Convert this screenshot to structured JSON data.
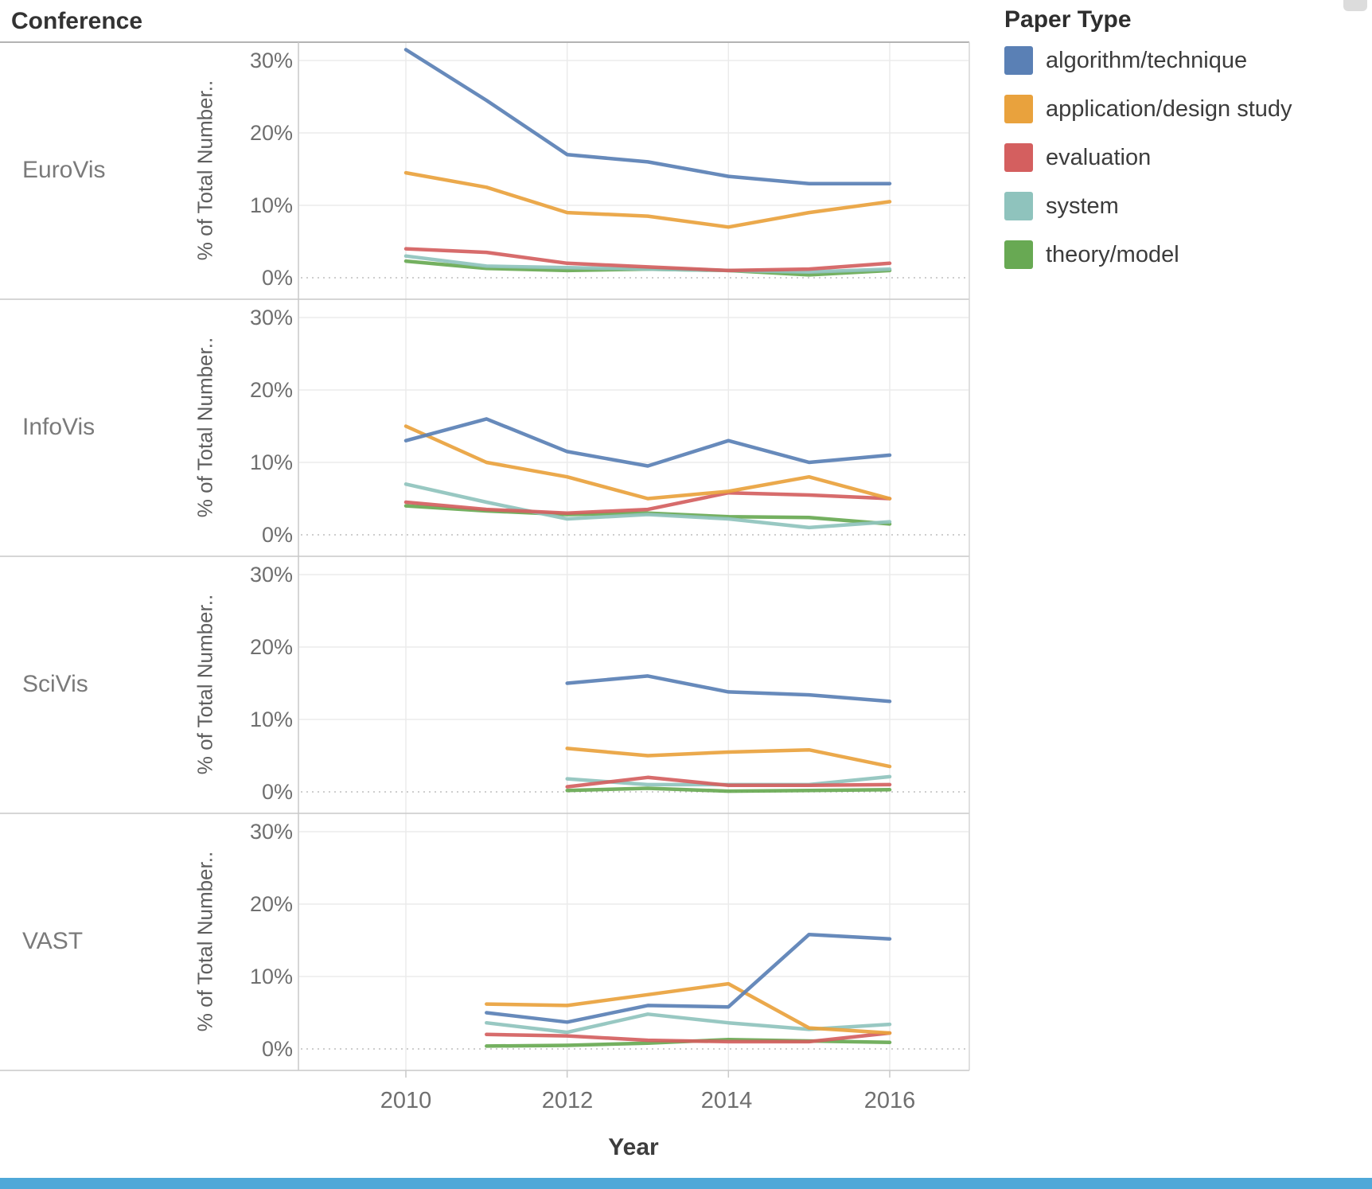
{
  "header": {
    "title": "Conference"
  },
  "x_axis": {
    "title": "Year",
    "ticks": [
      "2010",
      "2012",
      "2014",
      "2016"
    ],
    "tick_years": [
      2010,
      2012,
      2014,
      2016
    ]
  },
  "y_axis": {
    "title": "% of Total Number..",
    "ticks": [
      "30%",
      "20%",
      "10%",
      "0%"
    ],
    "tick_values": [
      30,
      20,
      10,
      0
    ]
  },
  "legend": {
    "title": "Paper Type",
    "items": [
      {
        "label": "algorithm/technique",
        "color": "#5a80b5"
      },
      {
        "label": "application/design study",
        "color": "#e9a23d"
      },
      {
        "label": "evaluation",
        "color": "#d45f5f"
      },
      {
        "label": "system",
        "color": "#8fc3bd"
      },
      {
        "label": "theory/model",
        "color": "#68a953"
      }
    ]
  },
  "chart_data": {
    "type": "line",
    "facet_field": "Conference",
    "x": [
      2010,
      2011,
      2012,
      2013,
      2014,
      2015,
      2016
    ],
    "xlabel": "Year",
    "ylabel": "% of Total Number..",
    "ylim": [
      0,
      33
    ],
    "grid": true,
    "legend_position": "top-right",
    "panels": [
      {
        "conference": "EuroVis",
        "series": [
          {
            "name": "algorithm/technique",
            "color": "#5a80b5",
            "values": [
              31.5,
              24.5,
              17,
              16,
              14,
              13,
              13
            ]
          },
          {
            "name": "application/design study",
            "color": "#e9a23d",
            "values": [
              14.5,
              12.5,
              9,
              8.5,
              7,
              9,
              10.5
            ]
          },
          {
            "name": "evaluation",
            "color": "#d45f5f",
            "values": [
              4,
              3.5,
              2,
              1.5,
              1,
              1.2,
              2
            ]
          },
          {
            "name": "system",
            "color": "#8fc3bd",
            "values": [
              3,
              1.6,
              1.4,
              1.2,
              1,
              0.8,
              1.2
            ]
          },
          {
            "name": "theory/model",
            "color": "#68a953",
            "values": [
              2.3,
              1.3,
              1,
              1.2,
              1,
              0.4,
              1
            ]
          }
        ]
      },
      {
        "conference": "InfoVis",
        "series": [
          {
            "name": "algorithm/technique",
            "color": "#5a80b5",
            "values": [
              13,
              16,
              11.5,
              9.5,
              13,
              10,
              11
            ]
          },
          {
            "name": "application/design study",
            "color": "#e9a23d",
            "values": [
              15,
              10,
              8,
              5,
              6,
              8,
              5
            ]
          },
          {
            "name": "evaluation",
            "color": "#d45f5f",
            "values": [
              4.5,
              3.5,
              3,
              3.5,
              5.8,
              5.5,
              5
            ]
          },
          {
            "name": "system",
            "color": "#8fc3bd",
            "values": [
              7,
              4.5,
              2.2,
              2.8,
              2.2,
              1,
              1.8
            ]
          },
          {
            "name": "theory/model",
            "color": "#68a953",
            "values": [
              4,
              3.3,
              2.8,
              3,
              2.5,
              2.4,
              1.5
            ]
          }
        ]
      },
      {
        "conference": "SciVis",
        "series": [
          {
            "name": "algorithm/technique",
            "color": "#5a80b5",
            "values": [
              null,
              null,
              15,
              16,
              13.8,
              13.4,
              12.5
            ]
          },
          {
            "name": "application/design study",
            "color": "#e9a23d",
            "values": [
              null,
              null,
              6,
              5,
              5.5,
              5.8,
              3.5
            ]
          },
          {
            "name": "evaluation",
            "color": "#d45f5f",
            "values": [
              null,
              null,
              0.7,
              2,
              0.9,
              0.9,
              1
            ]
          },
          {
            "name": "system",
            "color": "#8fc3bd",
            "values": [
              null,
              null,
              1.8,
              1,
              1,
              1,
              2.1
            ]
          },
          {
            "name": "theory/model",
            "color": "#68a953",
            "values": [
              null,
              null,
              0.2,
              0.5,
              0.1,
              0.2,
              0.3
            ]
          }
        ]
      },
      {
        "conference": "VAST",
        "series": [
          {
            "name": "algorithm/technique",
            "color": "#5a80b5",
            "values": [
              null,
              5,
              3.7,
              6,
              5.8,
              15.8,
              15.2
            ]
          },
          {
            "name": "application/design study",
            "color": "#e9a23d",
            "values": [
              null,
              6.2,
              6,
              7.5,
              9,
              2.9,
              2.2
            ]
          },
          {
            "name": "evaluation",
            "color": "#d45f5f",
            "values": [
              null,
              2,
              1.8,
              1.2,
              1,
              1,
              2.2
            ]
          },
          {
            "name": "system",
            "color": "#8fc3bd",
            "values": [
              null,
              3.6,
              2.3,
              4.8,
              3.6,
              2.7,
              3.4
            ]
          },
          {
            "name": "theory/model",
            "color": "#68a953",
            "values": [
              null,
              0.4,
              0.5,
              0.8,
              1.3,
              1.1,
              0.9
            ]
          }
        ]
      }
    ]
  },
  "page": {
    "footer_bar_color": "#4fa8d8",
    "grid_color": "#ebebeb",
    "border_color": "#c9c9c9",
    "zero_line_color": "#bdbdbd"
  }
}
